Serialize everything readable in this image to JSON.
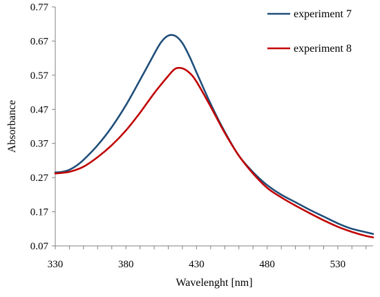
{
  "chart_data": {
    "type": "line",
    "title": "",
    "xlabel": "Wavelenght [nm]",
    "ylabel": "Absorbance",
    "xlim": [
      330,
      555
    ],
    "ylim": [
      0.07,
      0.77
    ],
    "x_ticks": [
      330,
      380,
      430,
      480,
      530
    ],
    "y_ticks": [
      0.07,
      0.17,
      0.27,
      0.37,
      0.47,
      0.57,
      0.67,
      0.77
    ],
    "grid": false,
    "legend_position": "top-right",
    "series": [
      {
        "name": "experiment 7",
        "color": "#1f4e79",
        "x": [
          330,
          335,
          340,
          345,
          350,
          360,
          370,
          380,
          390,
          400,
          405,
          410,
          415,
          420,
          425,
          430,
          440,
          450,
          460,
          470,
          480,
          490,
          500,
          510,
          520,
          530,
          540,
          550,
          555
        ],
        "y": [
          0.285,
          0.287,
          0.293,
          0.305,
          0.322,
          0.365,
          0.418,
          0.482,
          0.556,
          0.632,
          0.667,
          0.686,
          0.685,
          0.664,
          0.625,
          0.578,
          0.486,
          0.404,
          0.334,
          0.286,
          0.248,
          0.22,
          0.198,
          0.176,
          0.156,
          0.136,
          0.12,
          0.11,
          0.105
        ]
      },
      {
        "name": "experiment 8",
        "color": "#c00000",
        "x": [
          330,
          340,
          350,
          360,
          370,
          380,
          390,
          400,
          410,
          415,
          420,
          425,
          430,
          440,
          450,
          460,
          470,
          480,
          490,
          500,
          510,
          520,
          530,
          540,
          550,
          555
        ],
        "y": [
          0.282,
          0.287,
          0.302,
          0.33,
          0.365,
          0.408,
          0.46,
          0.517,
          0.568,
          0.589,
          0.59,
          0.577,
          0.551,
          0.478,
          0.401,
          0.334,
          0.282,
          0.24,
          0.212,
          0.188,
          0.166,
          0.145,
          0.126,
          0.111,
          0.099,
          0.095
        ]
      }
    ]
  }
}
